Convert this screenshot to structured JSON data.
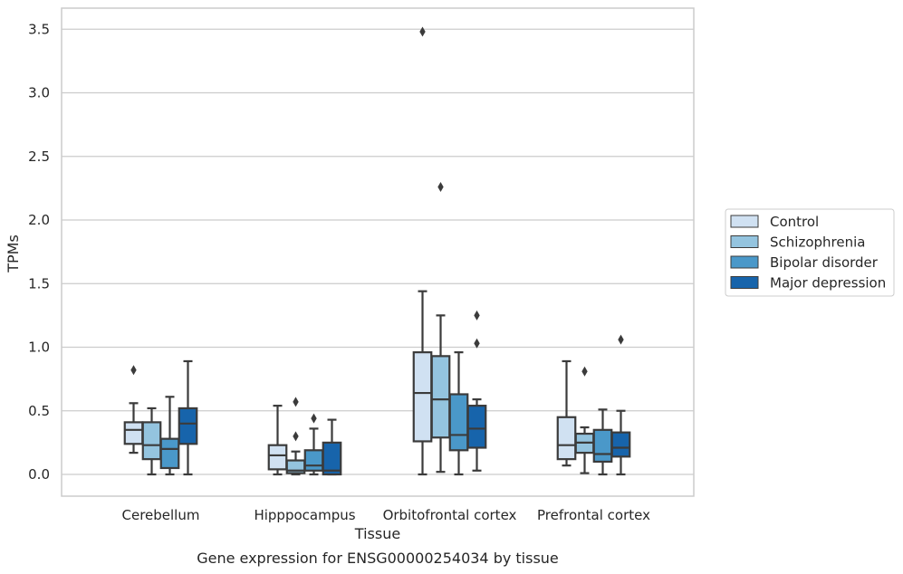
{
  "chart_data": {
    "type": "box",
    "title": "",
    "caption": "Gene expression for ENSG00000254034 by tissue",
    "xlabel": "Tissue",
    "ylabel": "TPMs",
    "ylim": [
      -0.17,
      3.65
    ],
    "yticks": [
      "0.0",
      "0.5",
      "1.0",
      "1.5",
      "2.0",
      "2.5",
      "3.0",
      "3.5"
    ],
    "ytick_values": [
      0,
      0.5,
      1.0,
      1.5,
      2.0,
      2.5,
      3.0,
      3.5
    ],
    "grid": "horizontal",
    "legend_position": "right",
    "categories": [
      "Cerebellum",
      "Hipppocampus",
      "Orbitofrontal cortex",
      "Prefrontal cortex"
    ],
    "colors": {
      "Control": "#d0e1f2",
      "Schizophrenia": "#94c4df",
      "Bipolar disorder": "#4a98c9",
      "Major depression": "#1764ab",
      "line": "#3b3b3b",
      "grid": "#cccccc",
      "frame": "#cccccc"
    },
    "series": [
      {
        "name": "Control",
        "boxes": [
          {
            "category": "Cerebellum",
            "whislo": 0.17,
            "q1": 0.24,
            "med": 0.35,
            "q3": 0.41,
            "whishi": 0.56,
            "fliers": [
              0.82
            ]
          },
          {
            "category": "Hipppocampus",
            "whislo": 0.0,
            "q1": 0.04,
            "med": 0.15,
            "q3": 0.23,
            "whishi": 0.54,
            "fliers": []
          },
          {
            "category": "Orbitofrontal cortex",
            "whislo": 0.0,
            "q1": 0.26,
            "med": 0.64,
            "q3": 0.96,
            "whishi": 1.44,
            "fliers": [
              3.48
            ]
          },
          {
            "category": "Prefrontal cortex",
            "whislo": 0.07,
            "q1": 0.12,
            "med": 0.23,
            "q3": 0.45,
            "whishi": 0.89,
            "fliers": []
          }
        ]
      },
      {
        "name": "Schizophrenia",
        "boxes": [
          {
            "category": "Cerebellum",
            "whislo": 0.0,
            "q1": 0.12,
            "med": 0.23,
            "q3": 0.41,
            "whishi": 0.52,
            "fliers": []
          },
          {
            "category": "Hipppocampus",
            "whislo": 0.0,
            "q1": 0.01,
            "med": 0.03,
            "q3": 0.11,
            "whishi": 0.18,
            "fliers": [
              0.3,
              0.57
            ]
          },
          {
            "category": "Orbitofrontal cortex",
            "whislo": 0.02,
            "q1": 0.29,
            "med": 0.59,
            "q3": 0.93,
            "whishi": 1.25,
            "fliers": [
              2.26
            ]
          },
          {
            "category": "Prefrontal cortex",
            "whislo": 0.01,
            "q1": 0.17,
            "med": 0.25,
            "q3": 0.32,
            "whishi": 0.37,
            "fliers": [
              0.81
            ]
          }
        ]
      },
      {
        "name": "Bipolar disorder",
        "boxes": [
          {
            "category": "Cerebellum",
            "whislo": 0.0,
            "q1": 0.05,
            "med": 0.2,
            "q3": 0.28,
            "whishi": 0.61,
            "fliers": []
          },
          {
            "category": "Hipppocampus",
            "whislo": 0.0,
            "q1": 0.03,
            "med": 0.07,
            "q3": 0.19,
            "whishi": 0.36,
            "fliers": [
              0.44
            ]
          },
          {
            "category": "Orbitofrontal cortex",
            "whislo": 0.0,
            "q1": 0.19,
            "med": 0.31,
            "q3": 0.63,
            "whishi": 0.96,
            "fliers": []
          },
          {
            "category": "Prefrontal cortex",
            "whislo": 0.0,
            "q1": 0.1,
            "med": 0.16,
            "q3": 0.35,
            "whishi": 0.51,
            "fliers": []
          }
        ]
      },
      {
        "name": "Major depression",
        "boxes": [
          {
            "category": "Cerebellum",
            "whislo": 0.0,
            "q1": 0.24,
            "med": 0.4,
            "q3": 0.52,
            "whishi": 0.89,
            "fliers": []
          },
          {
            "category": "Hipppocampus",
            "whislo": 0.0,
            "q1": 0.0,
            "med": 0.03,
            "q3": 0.25,
            "whishi": 0.43,
            "fliers": []
          },
          {
            "category": "Orbitofrontal cortex",
            "whislo": 0.03,
            "q1": 0.21,
            "med": 0.36,
            "q3": 0.54,
            "whishi": 0.59,
            "fliers": [
              1.03,
              1.25
            ]
          },
          {
            "category": "Prefrontal cortex",
            "whislo": 0.0,
            "q1": 0.14,
            "med": 0.21,
            "q3": 0.33,
            "whishi": 0.5,
            "fliers": [
              1.06
            ]
          }
        ]
      }
    ]
  }
}
